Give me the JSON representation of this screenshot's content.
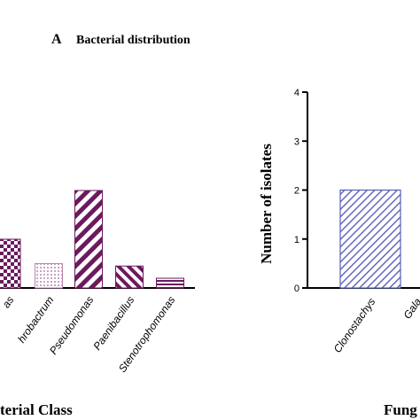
{
  "panel_title": {
    "letter": "A",
    "text": "Bacterial distribution"
  },
  "chart_data": [
    {
      "type": "bar",
      "title": "",
      "xlabel": "terial Class",
      "ylabel": "",
      "categories": [
        "as",
        "hrobactrum",
        "Pseudomonas",
        "Paenibacillus",
        "Stenotrophomonas"
      ],
      "values": [
        1,
        0.5,
        2,
        0.45,
        0.2
      ],
      "ylim": [
        0,
        4
      ],
      "grid": false,
      "colors": {
        "fill": "#6b1a5e",
        "light": "#b988b0"
      }
    },
    {
      "type": "bar",
      "title": "",
      "xlabel": "Fung",
      "ylabel": "Number of isolates",
      "categories": [
        "Clonostachys",
        "Gala"
      ],
      "values": [
        2,
        null
      ],
      "yticks": [
        "0",
        "1",
        "2",
        "3",
        "4"
      ],
      "ylim": [
        0,
        4
      ],
      "grid": false,
      "colors": {
        "fill": "#5b5fb8"
      }
    }
  ]
}
